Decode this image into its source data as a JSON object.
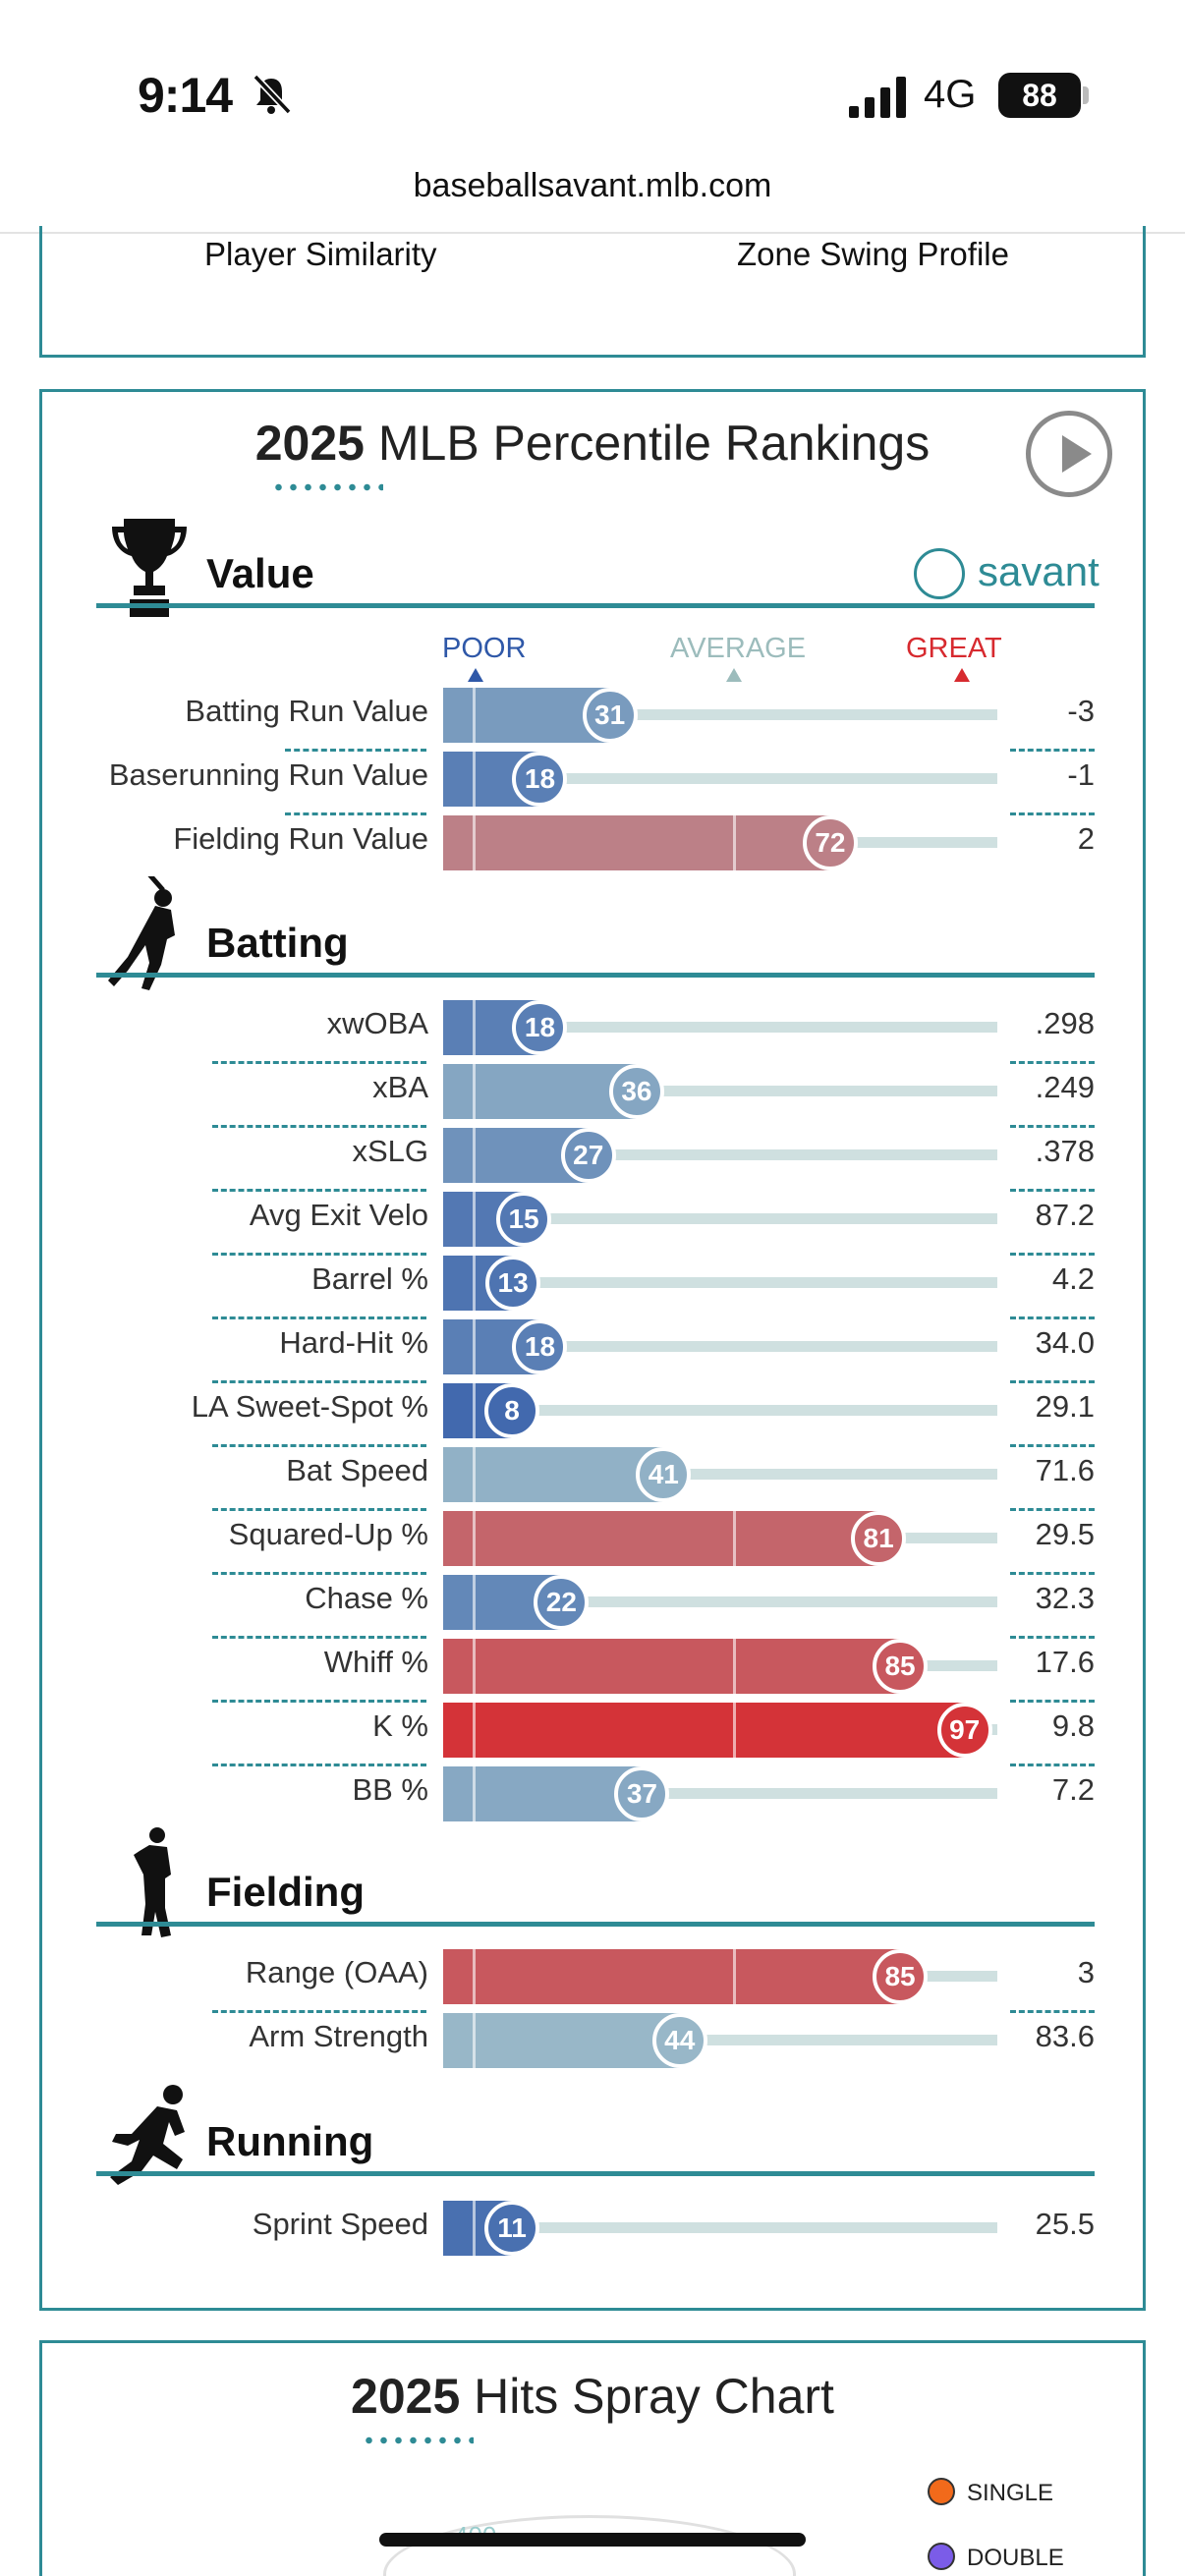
{
  "status": {
    "time": "9:14",
    "network": "4G",
    "battery": "88"
  },
  "browser": {
    "url": "baseballsavant.mlb.com"
  },
  "top_card": {
    "links": [
      "Player Similarity",
      "Zone Swing Profile"
    ]
  },
  "percentile_card": {
    "title_year": "2025",
    "title_rest": " MLB Percentile Rankings",
    "brand": "savant",
    "scale": {
      "poor": "POOR",
      "average": "AVERAGE",
      "great": "GREAT"
    },
    "sections": [
      {
        "title": "Value",
        "rows": [
          {
            "label": "Batting Run Value",
            "pct": 31,
            "value": "-3"
          },
          {
            "label": "Baserunning Run Value",
            "pct": 18,
            "value": "-1"
          },
          {
            "label": "Fielding Run Value",
            "pct": 72,
            "value": "2"
          }
        ]
      },
      {
        "title": "Batting",
        "rows": [
          {
            "label": "xwOBA",
            "pct": 18,
            "value": ".298"
          },
          {
            "label": "xBA",
            "pct": 36,
            "value": ".249"
          },
          {
            "label": "xSLG",
            "pct": 27,
            "value": ".378"
          },
          {
            "label": "Avg Exit Velo",
            "pct": 15,
            "value": "87.2"
          },
          {
            "label": "Barrel %",
            "pct": 13,
            "value": "4.2"
          },
          {
            "label": "Hard-Hit %",
            "pct": 18,
            "value": "34.0"
          },
          {
            "label": "LA Sweet-Spot %",
            "pct": 8,
            "value": "29.1"
          },
          {
            "label": "Bat Speed",
            "pct": 41,
            "value": "71.6"
          },
          {
            "label": "Squared-Up %",
            "pct": 81,
            "value": "29.5"
          },
          {
            "label": "Chase %",
            "pct": 22,
            "value": "32.3"
          },
          {
            "label": "Whiff %",
            "pct": 85,
            "value": "17.6"
          },
          {
            "label": "K %",
            "pct": 97,
            "value": "9.8"
          },
          {
            "label": "BB %",
            "pct": 37,
            "value": "7.2"
          }
        ]
      },
      {
        "title": "Fielding",
        "rows": [
          {
            "label": "Range (OAA)",
            "pct": 85,
            "value": "3"
          },
          {
            "label": "Arm Strength",
            "pct": 44,
            "value": "83.6"
          }
        ]
      },
      {
        "title": "Running",
        "rows": [
          {
            "label": "Sprint Speed",
            "pct": 11,
            "value": "25.5"
          }
        ]
      }
    ]
  },
  "spray_card": {
    "title_year": "2025",
    "title_rest": " Hits Spray Chart",
    "fence": "400",
    "legend": [
      {
        "label": "SINGLE",
        "color": "#f26a1b"
      },
      {
        "label": "DOUBLE",
        "color": "#7b5ce8"
      }
    ]
  },
  "colors": {
    "accent": "#2e8b95",
    "poor": "#2f58a8",
    "great": "#d72a2f"
  }
}
